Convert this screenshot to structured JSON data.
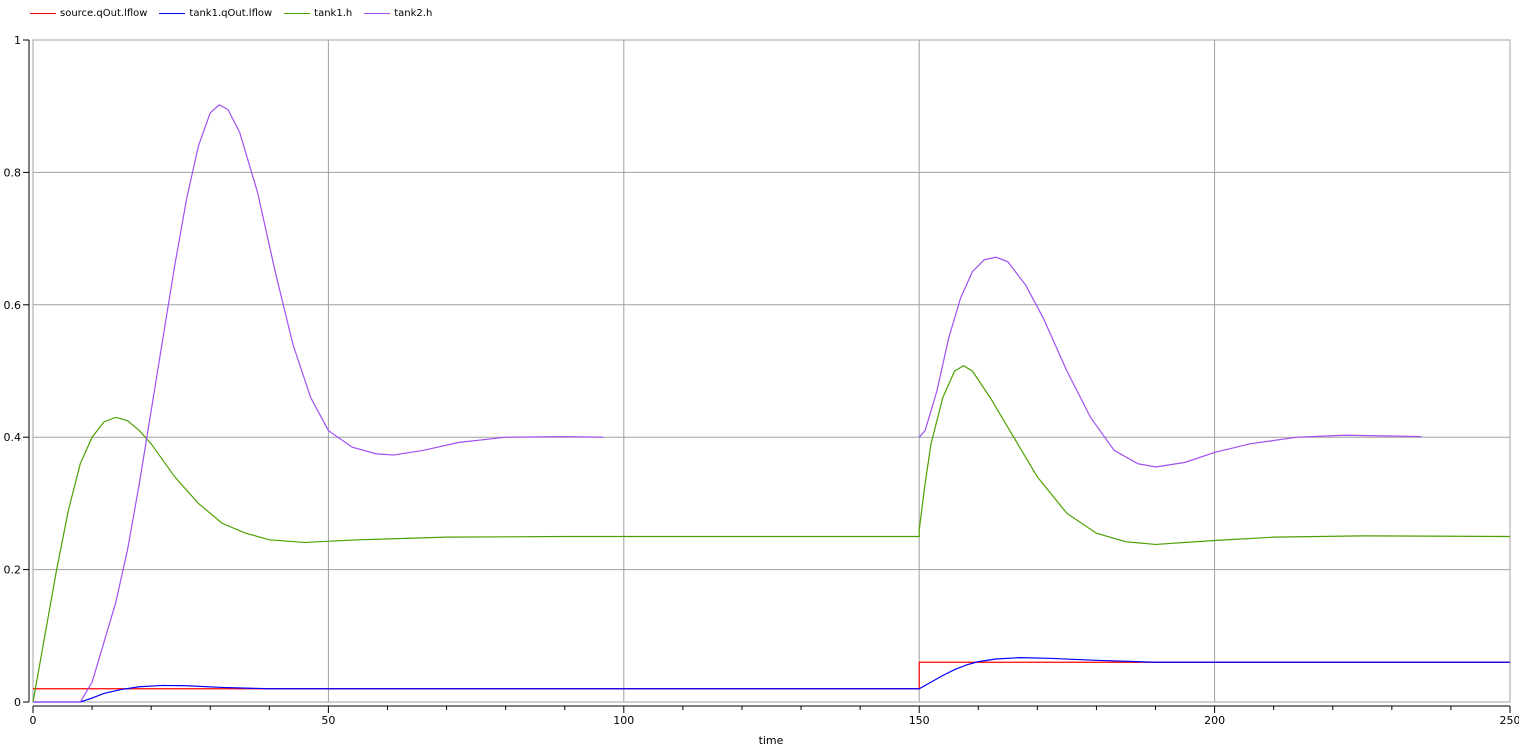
{
  "chart_data": {
    "type": "line",
    "xlabel": "time",
    "ylabel": "",
    "xlim": [
      0,
      250
    ],
    "ylim": [
      0,
      1
    ],
    "xticks": [
      0,
      50,
      100,
      150,
      200,
      250
    ],
    "yticks": [
      0,
      0.2,
      0.4,
      0.6,
      0.8,
      1
    ],
    "ytick_labels": [
      "0",
      "0.2",
      "0.4",
      "0.6",
      "0.8",
      "1"
    ],
    "grid": true,
    "legend": "top-left",
    "series": [
      {
        "name": "source.qOut.lflow",
        "color": "#ff0000",
        "points": [
          [
            0,
            0.02
          ],
          [
            150,
            0.02
          ],
          [
            150,
            0.06
          ],
          [
            250,
            0.06
          ]
        ]
      },
      {
        "name": "tank1.qOut.lflow",
        "color": "#0000ff",
        "points": [
          [
            0,
            0
          ],
          [
            8,
            0
          ],
          [
            10,
            0.006
          ],
          [
            12,
            0.013
          ],
          [
            15,
            0.019
          ],
          [
            18,
            0.023
          ],
          [
            22,
            0.025
          ],
          [
            26,
            0.0245
          ],
          [
            32,
            0.022
          ],
          [
            40,
            0.02
          ],
          [
            150,
            0.02
          ],
          [
            152,
            0.03
          ],
          [
            154,
            0.04
          ],
          [
            156,
            0.049
          ],
          [
            158,
            0.056
          ],
          [
            160,
            0.061
          ],
          [
            163,
            0.065
          ],
          [
            167,
            0.067
          ],
          [
            172,
            0.066
          ],
          [
            180,
            0.063
          ],
          [
            190,
            0.06
          ],
          [
            250,
            0.06
          ]
        ]
      },
      {
        "name": "tank1.h",
        "color": "#4ca100",
        "points": [
          [
            0,
            0
          ],
          [
            2,
            0.1
          ],
          [
            4,
            0.2
          ],
          [
            6,
            0.29
          ],
          [
            8,
            0.36
          ],
          [
            10,
            0.4
          ],
          [
            12,
            0.423
          ],
          [
            14,
            0.43
          ],
          [
            16,
            0.425
          ],
          [
            18,
            0.41
          ],
          [
            20,
            0.39
          ],
          [
            24,
            0.34
          ],
          [
            28,
            0.3
          ],
          [
            32,
            0.27
          ],
          [
            36,
            0.255
          ],
          [
            40,
            0.245
          ],
          [
            46,
            0.241
          ],
          [
            55,
            0.245
          ],
          [
            70,
            0.249
          ],
          [
            90,
            0.25
          ],
          [
            150,
            0.25
          ],
          [
            150,
            0.26
          ],
          [
            151,
            0.33
          ],
          [
            152,
            0.39
          ],
          [
            154,
            0.46
          ],
          [
            156,
            0.5
          ],
          [
            157.5,
            0.508
          ],
          [
            159,
            0.5
          ],
          [
            162,
            0.46
          ],
          [
            166,
            0.4
          ],
          [
            170,
            0.34
          ],
          [
            175,
            0.285
          ],
          [
            180,
            0.255
          ],
          [
            185,
            0.242
          ],
          [
            190,
            0.238
          ],
          [
            200,
            0.244
          ],
          [
            210,
            0.249
          ],
          [
            225,
            0.251
          ],
          [
            250,
            0.25
          ]
        ]
      },
      {
        "name": "tank2.h",
        "color": "#a050f0",
        "segments": [
          [
            [
              0,
              0
            ],
            [
              8,
              0
            ],
            [
              10,
              0.03
            ],
            [
              12,
              0.09
            ],
            [
              14,
              0.15
            ],
            [
              16,
              0.23
            ],
            [
              18,
              0.33
            ],
            [
              20,
              0.44
            ],
            [
              22,
              0.55
            ],
            [
              24,
              0.66
            ],
            [
              26,
              0.76
            ],
            [
              28,
              0.84
            ],
            [
              30,
              0.89
            ],
            [
              31.5,
              0.902
            ],
            [
              33,
              0.895
            ],
            [
              35,
              0.86
            ],
            [
              38,
              0.77
            ],
            [
              41,
              0.65
            ],
            [
              44,
              0.54
            ],
            [
              47,
              0.46
            ],
            [
              50,
              0.41
            ],
            [
              54,
              0.385
            ],
            [
              58,
              0.375
            ],
            [
              61,
              0.373
            ],
            [
              66,
              0.38
            ],
            [
              72,
              0.392
            ],
            [
              80,
              0.4
            ],
            [
              90,
              0.401
            ],
            [
              96.5,
              0.4
            ]
          ],
          [
            [
              150,
              0.4
            ],
            [
              151,
              0.41
            ],
            [
              153,
              0.47
            ],
            [
              155,
              0.55
            ],
            [
              157,
              0.61
            ],
            [
              159,
              0.65
            ],
            [
              161,
              0.668
            ],
            [
              163,
              0.672
            ],
            [
              165,
              0.665
            ],
            [
              168,
              0.63
            ],
            [
              171,
              0.58
            ],
            [
              175,
              0.5
            ],
            [
              179,
              0.43
            ],
            [
              183,
              0.38
            ],
            [
              187,
              0.36
            ],
            [
              190,
              0.355
            ],
            [
              195,
              0.362
            ],
            [
              200,
              0.377
            ],
            [
              206,
              0.39
            ],
            [
              214,
              0.4
            ],
            [
              222,
              0.403
            ],
            [
              235,
              0.401
            ]
          ]
        ]
      }
    ]
  }
}
